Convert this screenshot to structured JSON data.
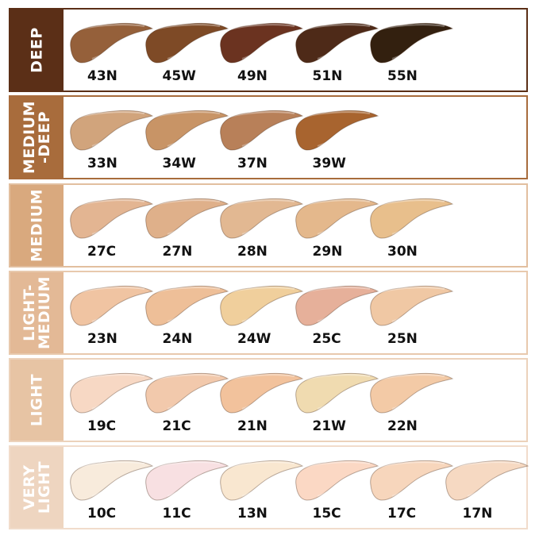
{
  "rows": [
    {
      "label": "DEEP",
      "panel": "#5b2f17",
      "border": "#5b2f17",
      "shades": [
        {
          "name": "43N",
          "color": "#95603a"
        },
        {
          "name": "45W",
          "color": "#7e4a26"
        },
        {
          "name": "49N",
          "color": "#6b3320"
        },
        {
          "name": "51N",
          "color": "#4e2a18"
        },
        {
          "name": "55N",
          "color": "#33200f"
        }
      ]
    },
    {
      "label": "MEDIUM\n-DEEP",
      "panel": "#a86c3c",
      "border": "#a86c3c",
      "shades": [
        {
          "name": "33N",
          "color": "#d1a47c"
        },
        {
          "name": "34W",
          "color": "#c89466"
        },
        {
          "name": "37N",
          "color": "#b88059"
        },
        {
          "name": "39W",
          "color": "#a8642f"
        }
      ]
    },
    {
      "label": "MEDIUM",
      "panel": "#d9a97e",
      "border": "#e2bf9f",
      "shades": [
        {
          "name": "27C",
          "color": "#e3b592"
        },
        {
          "name": "27N",
          "color": "#dfb08a"
        },
        {
          "name": "28N",
          "color": "#e2b892"
        },
        {
          "name": "29N",
          "color": "#e4b88c"
        },
        {
          "name": "30N",
          "color": "#e8bf8c"
        }
      ]
    },
    {
      "label": "LIGHT-\nMEDIUM",
      "panel": "#e3b996",
      "border": "#e8c9ad",
      "shades": [
        {
          "name": "23N",
          "color": "#f0c4a2"
        },
        {
          "name": "24N",
          "color": "#eebf98"
        },
        {
          "name": "24W",
          "color": "#f0cf9c"
        },
        {
          "name": "25C",
          "color": "#e6b09a"
        },
        {
          "name": "25N",
          "color": "#f0c8a4"
        }
      ]
    },
    {
      "label": "LIGHT",
      "panel": "#e7c4a4",
      "border": "#ecd2bb",
      "shades": [
        {
          "name": "19C",
          "color": "#f7d8c4"
        },
        {
          "name": "21C",
          "color": "#f2c9ac"
        },
        {
          "name": "21N",
          "color": "#f2c29c"
        },
        {
          "name": "21W",
          "color": "#f0dbb0"
        },
        {
          "name": "22N",
          "color": "#f3caa6"
        }
      ]
    },
    {
      "label": "VERY\nLIGHT",
      "panel": "#eed5c0",
      "border": "#f1dccb",
      "shades": [
        {
          "name": "10C",
          "color": "#f8ebdc"
        },
        {
          "name": "11C",
          "color": "#f8e0e2"
        },
        {
          "name": "13N",
          "color": "#f9e7d0"
        },
        {
          "name": "15C",
          "color": "#fbd8c4"
        },
        {
          "name": "17C",
          "color": "#f7d6bc"
        },
        {
          "name": "17N",
          "color": "#f6d9c2"
        }
      ]
    }
  ]
}
